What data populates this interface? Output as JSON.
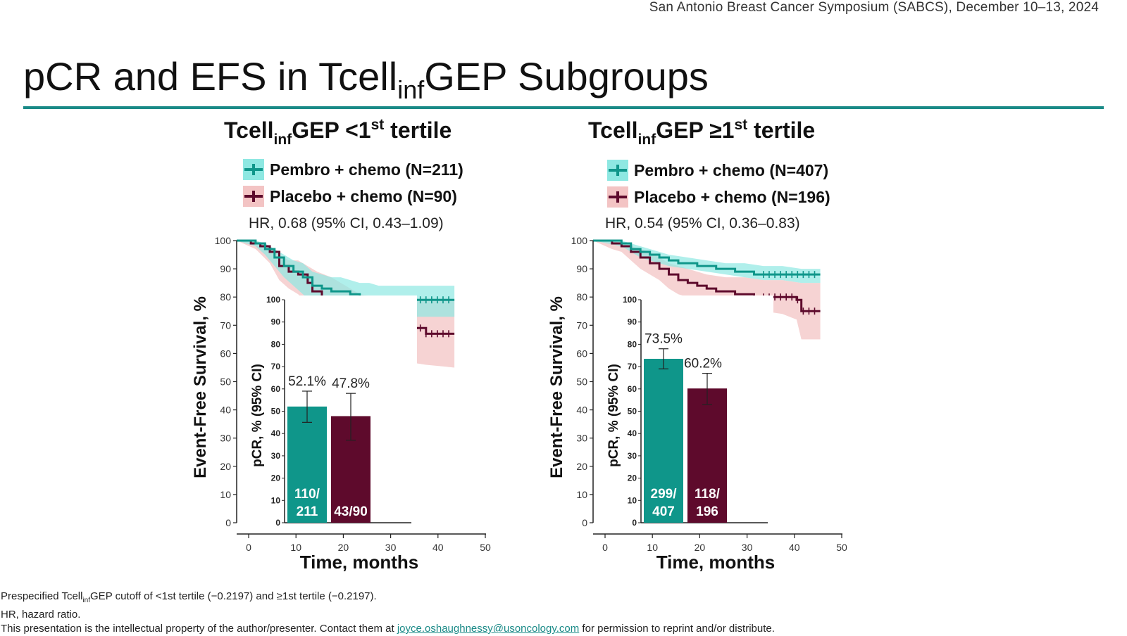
{
  "header": {
    "conference": "San Antonio Breast Cancer Symposium (SABCS), December 10–13, 2024"
  },
  "slide": {
    "title_main": "pCR and EFS in Tcell",
    "title_sub": "inf",
    "title_end": "GEP Subgroups"
  },
  "legend_labels": {
    "left": [
      "Pembro + chemo (N=211)",
      "Placebo + chemo (N=90)"
    ],
    "right": [
      "Pembro + chemo (N=407)",
      "Placebo + chemo (N=196)"
    ]
  },
  "colors": {
    "pembro": "#0f968a",
    "placebo": "#5e0a2c",
    "pembro_ci": "#8ee8e2",
    "placebo_ci": "#f3c4c4",
    "rule": "#1a8a87"
  },
  "chart_data": [
    {
      "type": "line",
      "panel_title": {
        "prefix": "Tcell",
        "sub": "inf",
        "mid": "GEP <1",
        "sup": "st",
        "suffix": " tertile"
      },
      "hr_text": "HR, 0.68 (95% CI, 0.43–1.09)",
      "xlabel": "Time, months",
      "ylabel": "Event-Free Survival, %",
      "xlim": [
        0,
        50
      ],
      "ylim": [
        0,
        100
      ],
      "x_ticks": [
        0,
        10,
        20,
        30,
        40,
        50
      ],
      "y_ticks": [
        0,
        10,
        20,
        30,
        40,
        50,
        60,
        70,
        80,
        90,
        100
      ],
      "series": [
        {
          "name": "Pembro + chemo (N=211)",
          "points": [
            [
              0,
              100
            ],
            [
              2,
              100
            ],
            [
              4,
              99
            ],
            [
              6,
              97
            ],
            [
              8,
              94
            ],
            [
              10,
              91
            ],
            [
              12,
              89
            ],
            [
              14,
              87
            ],
            [
              16,
              84
            ],
            [
              18,
              83
            ],
            [
              20,
              82
            ],
            [
              22,
              82
            ],
            [
              24,
              81
            ],
            [
              26,
              80
            ],
            [
              28,
              80
            ],
            [
              30,
              79
            ],
            [
              33,
              79
            ],
            [
              36,
              79
            ],
            [
              40,
              79
            ],
            [
              43,
              79
            ],
            [
              46,
              79
            ]
          ],
          "ci_upper": [
            [
              0,
              100
            ],
            [
              4,
              100
            ],
            [
              6,
              99
            ],
            [
              8,
              97
            ],
            [
              10,
              95
            ],
            [
              12,
              93
            ],
            [
              14,
              92
            ],
            [
              16,
              89
            ],
            [
              18,
              88
            ],
            [
              20,
              87
            ],
            [
              22,
              87
            ],
            [
              24,
              86
            ],
            [
              26,
              85
            ],
            [
              28,
              85
            ],
            [
              30,
              84
            ],
            [
              35,
              84
            ],
            [
              40,
              84
            ],
            [
              46,
              84
            ]
          ],
          "ci_lower": [
            [
              0,
              100
            ],
            [
              4,
              98
            ],
            [
              6,
              95
            ],
            [
              8,
              91
            ],
            [
              10,
              87
            ],
            [
              12,
              84
            ],
            [
              14,
              81
            ],
            [
              16,
              78
            ],
            [
              18,
              77
            ],
            [
              20,
              77
            ],
            [
              22,
              76
            ],
            [
              24,
              75
            ],
            [
              26,
              74
            ],
            [
              28,
              74
            ],
            [
              30,
              73
            ],
            [
              35,
              73
            ],
            [
              40,
              73
            ],
            [
              46,
              73
            ]
          ]
        },
        {
          "name": "Placebo + chemo (N=90)",
          "points": [
            [
              0,
              100
            ],
            [
              3,
              99
            ],
            [
              5,
              98
            ],
            [
              7,
              96
            ],
            [
              9,
              91
            ],
            [
              11,
              89
            ],
            [
              13,
              88
            ],
            [
              15,
              85
            ],
            [
              16,
              82
            ],
            [
              18,
              80
            ],
            [
              20,
              78
            ],
            [
              22,
              75
            ],
            [
              24,
              72
            ],
            [
              26,
              70
            ],
            [
              28,
              70
            ],
            [
              30,
              69
            ],
            [
              33,
              69
            ],
            [
              36,
              69
            ],
            [
              38,
              69
            ],
            [
              40,
              67
            ],
            [
              42,
              67
            ],
            [
              46,
              67
            ]
          ],
          "ci_upper": [
            [
              0,
              100
            ],
            [
              4,
              100
            ],
            [
              7,
              98
            ],
            [
              9,
              95
            ],
            [
              11,
              93
            ],
            [
              13,
              93
            ],
            [
              15,
              91
            ],
            [
              17,
              89
            ],
            [
              20,
              87
            ],
            [
              23,
              84
            ],
            [
              26,
              81
            ],
            [
              30,
              80
            ],
            [
              36,
              80
            ],
            [
              40,
              79
            ],
            [
              46,
              79
            ]
          ],
          "ci_lower": [
            [
              0,
              100
            ],
            [
              4,
              97
            ],
            [
              7,
              92
            ],
            [
              9,
              86
            ],
            [
              11,
              83
            ],
            [
              13,
              81
            ],
            [
              15,
              77
            ],
            [
              17,
              72
            ],
            [
              20,
              68
            ],
            [
              23,
              64
            ],
            [
              26,
              60
            ],
            [
              30,
              58
            ],
            [
              36,
              57
            ],
            [
              40,
              56
            ],
            [
              46,
              55
            ]
          ]
        }
      ],
      "inset": {
        "type": "bar",
        "ylabel": "pCR, % (95% CI)",
        "ylim": [
          0,
          100
        ],
        "y_ticks": [
          0,
          10,
          20,
          30,
          40,
          50,
          60,
          70,
          80,
          90,
          100
        ],
        "bars": [
          {
            "series": "Pembro + chemo",
            "value": 52.1,
            "ci": [
              45,
              59
            ],
            "label": "52.1%",
            "count_lines": [
              "110/",
              "211"
            ]
          },
          {
            "series": "Placebo + chemo",
            "value": 47.8,
            "ci": [
              37,
              58
            ],
            "label": "47.8%",
            "count_lines": [
              "43/90"
            ]
          }
        ]
      }
    },
    {
      "type": "line",
      "panel_title": {
        "prefix": "Tcell",
        "sub": "inf",
        "mid": "GEP ≥1",
        "sup": "st",
        "suffix": " tertile"
      },
      "hr_text": "HR, 0.54 (95% CI, 0.36–0.83)",
      "xlabel": "Time, months",
      "ylabel": "Event-Free Survival, %",
      "xlim": [
        0,
        50
      ],
      "ylim": [
        0,
        100
      ],
      "x_ticks": [
        0,
        10,
        20,
        30,
        40,
        50
      ],
      "y_ticks": [
        0,
        10,
        20,
        30,
        40,
        50,
        60,
        70,
        80,
        90,
        100
      ],
      "series": [
        {
          "name": "Pembro + chemo (N=407)",
          "points": [
            [
              0,
              100
            ],
            [
              4,
              100
            ],
            [
              6,
              99
            ],
            [
              8,
              97
            ],
            [
              10,
              96
            ],
            [
              12,
              95
            ],
            [
              14,
              94
            ],
            [
              16,
              93
            ],
            [
              18,
              92
            ],
            [
              20,
              92
            ],
            [
              22,
              91
            ],
            [
              24,
              91
            ],
            [
              26,
              90
            ],
            [
              28,
              90
            ],
            [
              30,
              89
            ],
            [
              32,
              89
            ],
            [
              34,
              88
            ],
            [
              36,
              88
            ],
            [
              40,
              88
            ],
            [
              44,
              88
            ],
            [
              48,
              88
            ]
          ],
          "ci_upper": [
            [
              0,
              100
            ],
            [
              6,
              100
            ],
            [
              8,
              99
            ],
            [
              10,
              98
            ],
            [
              12,
              97
            ],
            [
              14,
              96
            ],
            [
              16,
              95
            ],
            [
              20,
              94
            ],
            [
              24,
              93
            ],
            [
              28,
              92
            ],
            [
              32,
              92
            ],
            [
              36,
              91
            ],
            [
              40,
              91
            ],
            [
              44,
              90
            ],
            [
              48,
              90
            ]
          ],
          "ci_lower": [
            [
              0,
              100
            ],
            [
              6,
              98
            ],
            [
              8,
              96
            ],
            [
              10,
              94
            ],
            [
              12,
              93
            ],
            [
              14,
              92
            ],
            [
              16,
              91
            ],
            [
              20,
              90
            ],
            [
              24,
              89
            ],
            [
              28,
              88
            ],
            [
              32,
              87
            ],
            [
              36,
              86
            ],
            [
              40,
              86
            ],
            [
              44,
              85
            ],
            [
              48,
              85
            ]
          ]
        },
        {
          "name": "Placebo + chemo (N=196)",
          "points": [
            [
              0,
              100
            ],
            [
              4,
              99
            ],
            [
              6,
              98
            ],
            [
              8,
              96
            ],
            [
              10,
              94
            ],
            [
              12,
              92
            ],
            [
              14,
              90
            ],
            [
              16,
              88
            ],
            [
              18,
              86
            ],
            [
              20,
              85
            ],
            [
              22,
              84
            ],
            [
              24,
              83
            ],
            [
              26,
              82
            ],
            [
              28,
              82
            ],
            [
              30,
              81
            ],
            [
              32,
              81
            ],
            [
              34,
              80
            ],
            [
              36,
              80
            ],
            [
              40,
              80
            ],
            [
              43,
              79
            ],
            [
              44,
              75
            ],
            [
              46,
              75
            ],
            [
              48,
              75
            ]
          ],
          "ci_upper": [
            [
              0,
              100
            ],
            [
              4,
              100
            ],
            [
              6,
              99
            ],
            [
              8,
              98
            ],
            [
              10,
              97
            ],
            [
              12,
              96
            ],
            [
              14,
              94
            ],
            [
              16,
              92
            ],
            [
              18,
              91
            ],
            [
              20,
              90
            ],
            [
              24,
              88
            ],
            [
              28,
              87
            ],
            [
              32,
              87
            ],
            [
              36,
              86
            ],
            [
              40,
              86
            ],
            [
              44,
              85
            ],
            [
              48,
              85
            ]
          ],
          "ci_lower": [
            [
              0,
              100
            ],
            [
              4,
              97
            ],
            [
              6,
              96
            ],
            [
              8,
              93
            ],
            [
              10,
              90
            ],
            [
              12,
              88
            ],
            [
              14,
              86
            ],
            [
              16,
              83
            ],
            [
              18,
              81
            ],
            [
              20,
              80
            ],
            [
              24,
              78
            ],
            [
              28,
              77
            ],
            [
              32,
              76
            ],
            [
              36,
              75
            ],
            [
              40,
              74
            ],
            [
              43,
              72
            ],
            [
              44,
              65
            ],
            [
              46,
              65
            ],
            [
              48,
              65
            ]
          ]
        }
      ],
      "inset": {
        "type": "bar",
        "ylabel": "pCR, % (95% CI)",
        "ylim": [
          0,
          100
        ],
        "y_ticks": [
          0,
          10,
          20,
          30,
          40,
          50,
          60,
          70,
          80,
          90,
          100
        ],
        "bars": [
          {
            "series": "Pembro + chemo",
            "value": 73.5,
            "ci": [
              69,
              78
            ],
            "label": "73.5%",
            "count_lines": [
              "299/",
              "407"
            ]
          },
          {
            "series": "Placebo + chemo",
            "value": 60.2,
            "ci": [
              53,
              67
            ],
            "label": "60.2%",
            "count_lines": [
              "118/",
              "196"
            ]
          }
        ]
      }
    }
  ],
  "footnotes": {
    "line1_a": "Prespecified Tcell",
    "line1_sub": "inf",
    "line1_b": "GEP cutoff of <1st tertile (−0.2197) and ≥1st tertile (−0.2197).",
    "line2": "HR, hazard ratio.",
    "line3_a": "This presentation is the intellectual property of the author/presenter. Contact them at ",
    "line3_link": "joyce.oshaughnessy@usoncology.com",
    "line3_b": " for permission to reprint and/or distribute."
  }
}
